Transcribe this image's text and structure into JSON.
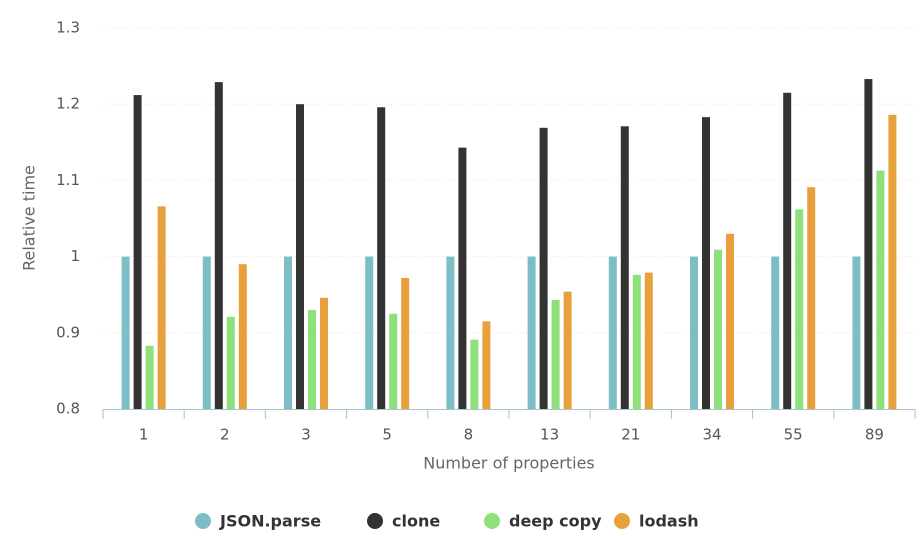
{
  "chart_data": {
    "type": "bar",
    "x_label": "Number of properties",
    "y_label": "Relative time",
    "categories": [
      "1",
      "2",
      "3",
      "5",
      "8",
      "13",
      "21",
      "34",
      "55",
      "89"
    ],
    "series": [
      {
        "name": "JSON.parse",
        "color": "#7cbec6",
        "values": [
          1,
          1,
          1,
          1,
          1,
          1,
          1,
          1,
          1,
          1
        ]
      },
      {
        "name": "clone",
        "color": "#333333",
        "values": [
          1.212,
          1.229,
          1.2,
          1.196,
          1.143,
          1.169,
          1.171,
          1.183,
          1.215,
          1.233
        ]
      },
      {
        "name": "deep copy",
        "color": "#8ee07a",
        "values": [
          0.883,
          0.921,
          0.93,
          0.925,
          0.891,
          0.943,
          0.976,
          1.009,
          1.062,
          1.113
        ]
      },
      {
        "name": "lodash",
        "color": "#e8a13a",
        "values": [
          1.066,
          0.99,
          0.946,
          0.972,
          0.915,
          0.954,
          0.979,
          1.03,
          1.091,
          1.186
        ]
      }
    ],
    "ylim": [
      0.8,
      1.3
    ],
    "yticks": [
      0.8,
      0.9,
      1,
      1.1,
      1.2,
      1.3
    ],
    "grid": true,
    "legend": "bottom"
  }
}
